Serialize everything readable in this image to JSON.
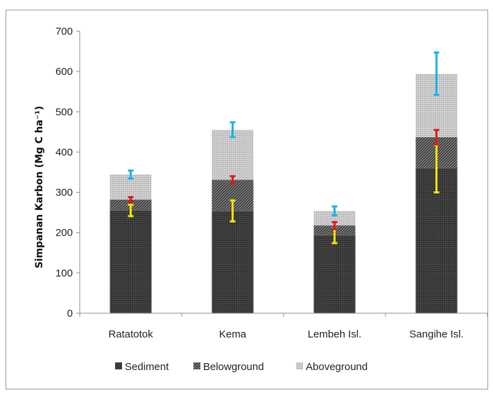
{
  "chart_data": {
    "type": "bar",
    "stacked": true,
    "categories": [
      "Ratatotok",
      "Kema",
      "Lembeh Isl.",
      "Sangihe Isl."
    ],
    "series": [
      {
        "name": "Sediment",
        "values": [
          255,
          253,
          193,
          360
        ],
        "pattern": "dark-dots",
        "color": "#3a3a3a"
      },
      {
        "name": "Belowground",
        "values": [
          27,
          78,
          25,
          77
        ],
        "pattern": "diagonal-hatch",
        "color": "#555555"
      },
      {
        "name": "Aboveground",
        "values": [
          62,
          124,
          36,
          157
        ],
        "pattern": "light-dots",
        "color": "#bcbcbc"
      }
    ],
    "error_bars": [
      {
        "series": "Sediment",
        "color": "#f5e400",
        "center": [
          255,
          253,
          193,
          360
        ],
        "low": [
          241,
          228,
          174,
          300
        ],
        "high": [
          269,
          280,
          210,
          418
        ]
      },
      {
        "series": "Belowground",
        "color": "#e11a1a",
        "center": [
          282,
          331,
          218,
          437
        ],
        "low": [
          276,
          322,
          209,
          419
        ],
        "high": [
          288,
          340,
          226,
          455
        ]
      },
      {
        "series": "Aboveground",
        "color": "#1ab3e8",
        "center": [
          344,
          455,
          254,
          594
        ],
        "low": [
          334,
          437,
          243,
          542
        ],
        "high": [
          354,
          474,
          265,
          647
        ]
      }
    ],
    "title": "",
    "xlabel": "",
    "ylabel": "Simpanan Karbon (Mg C ha⁻¹)",
    "ylim": [
      0,
      700
    ],
    "yticks": [
      "0",
      "100",
      "200",
      "300",
      "400",
      "500",
      "600",
      "700"
    ],
    "grid": false,
    "legend_position": "bottom"
  }
}
